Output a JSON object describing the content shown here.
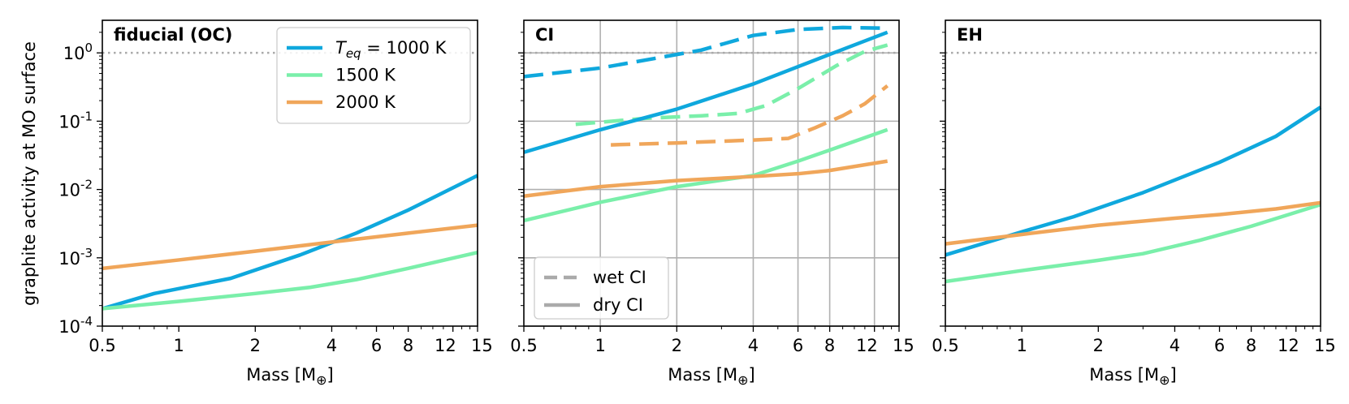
{
  "figure": {
    "ylabel": "graphite activity at MO surface"
  },
  "chart_data": [
    {
      "type": "line",
      "title": "fiducial (OC)",
      "xlabel": "Mass [M⊕]",
      "xscale": "log",
      "yscale": "log",
      "xlim": [
        0.5,
        15
      ],
      "ylim": [
        0.0001,
        3
      ],
      "xticks": [
        "0.5",
        "1",
        "2",
        "4",
        "6",
        "8",
        "12",
        "15"
      ],
      "yticks": [
        "10^-4",
        "10^-3",
        "10^-2",
        "10^-1",
        "10^0"
      ],
      "grid": false,
      "reference_line": {
        "y": 1,
        "style": "dotted",
        "color": "#aaaaaa"
      },
      "legend": {
        "placement": "top-right",
        "entries": [
          {
            "label_sym": "T",
            "label_sub": "eq",
            "label_rest": " = 1000 K",
            "color": "#0fa8dd"
          },
          {
            "label": "1500 K",
            "color": "#7aefaa"
          },
          {
            "label": "2000 K",
            "color": "#f0a65a"
          }
        ]
      },
      "series": [
        {
          "name": "1000 K",
          "color": "#0fa8dd",
          "style": "solid",
          "points": [
            [
              0.5,
              0.00018
            ],
            [
              0.8,
              0.0003
            ],
            [
              1.6,
              0.0005
            ],
            [
              3,
              0.0011
            ],
            [
              5,
              0.0023
            ],
            [
              8,
              0.005
            ],
            [
              15,
              0.016
            ]
          ]
        },
        {
          "name": "1500 K",
          "color": "#7aefaa",
          "style": "solid",
          "points": [
            [
              0.5,
              0.00018
            ],
            [
              1,
              0.00023
            ],
            [
              2,
              0.0003
            ],
            [
              3.3,
              0.00037
            ],
            [
              5,
              0.00048
            ],
            [
              8,
              0.0007
            ],
            [
              15,
              0.0012
            ]
          ]
        },
        {
          "name": "2000 K",
          "color": "#f0a65a",
          "style": "solid",
          "points": [
            [
              0.5,
              0.0007
            ],
            [
              1,
              0.00093
            ],
            [
              2,
              0.00125
            ],
            [
              4,
              0.0017
            ],
            [
              8,
              0.0023
            ],
            [
              15,
              0.003
            ]
          ]
        }
      ]
    },
    {
      "type": "line",
      "title": "CI",
      "xlabel": "Mass [M⊕]",
      "xscale": "log",
      "yscale": "log",
      "xlim": [
        0.5,
        15
      ],
      "ylim": [
        0.0001,
        3
      ],
      "xticks": [
        "0.5",
        "1",
        "2",
        "4",
        "6",
        "8",
        "12",
        "15"
      ],
      "grid": true,
      "reference_line": {
        "y": 1,
        "style": "dotted",
        "color": "#aaaaaa"
      },
      "legend": {
        "placement": "bottom-left",
        "entries": [
          {
            "label": "wet CI",
            "style": "dashed",
            "color": "#aaaaaa"
          },
          {
            "label": "dry CI",
            "style": "solid",
            "color": "#aaaaaa"
          }
        ]
      },
      "series": [
        {
          "name": "wet CI 1000 K",
          "color": "#0fa8dd",
          "style": "dashed",
          "points": [
            [
              0.5,
              0.45
            ],
            [
              1,
              0.6
            ],
            [
              1.7,
              0.85
            ],
            [
              2.5,
              1.1
            ],
            [
              4,
              1.8
            ],
            [
              6,
              2.2
            ],
            [
              9,
              2.35
            ],
            [
              13.5,
              2.3
            ]
          ]
        },
        {
          "name": "wet CI 1500 K",
          "color": "#7aefaa",
          "style": "dashed",
          "points": [
            [
              0.8,
              0.09
            ],
            [
              1.5,
              0.11
            ],
            [
              2.5,
              0.12
            ],
            [
              3.5,
              0.13
            ],
            [
              4.5,
              0.17
            ],
            [
              6,
              0.3
            ],
            [
              8.5,
              0.65
            ],
            [
              11,
              1.05
            ],
            [
              13.5,
              1.3
            ]
          ]
        },
        {
          "name": "wet CI 2000 K",
          "color": "#f0a65a",
          "style": "dashed",
          "points": [
            [
              1.1,
              0.045
            ],
            [
              2,
              0.048
            ],
            [
              4,
              0.053
            ],
            [
              5.5,
              0.056
            ],
            [
              7,
              0.08
            ],
            [
              9,
              0.12
            ],
            [
              11,
              0.18
            ],
            [
              13.5,
              0.33
            ]
          ]
        },
        {
          "name": "dry CI 1000 K",
          "color": "#0fa8dd",
          "style": "solid",
          "points": [
            [
              0.5,
              0.035
            ],
            [
              1,
              0.075
            ],
            [
              2,
              0.15
            ],
            [
              4,
              0.35
            ],
            [
              8,
              0.95
            ],
            [
              13.5,
              2.0
            ]
          ]
        },
        {
          "name": "dry CI 1500 K",
          "color": "#7aefaa",
          "style": "solid",
          "points": [
            [
              0.5,
              0.0035
            ],
            [
              1,
              0.0065
            ],
            [
              2,
              0.011
            ],
            [
              4,
              0.016
            ],
            [
              6,
              0.026
            ],
            [
              9,
              0.044
            ],
            [
              13.5,
              0.075
            ]
          ]
        },
        {
          "name": "dry CI 2000 K",
          "color": "#f0a65a",
          "style": "solid",
          "points": [
            [
              0.5,
              0.008
            ],
            [
              1,
              0.011
            ],
            [
              2,
              0.0135
            ],
            [
              4,
              0.0155
            ],
            [
              6,
              0.017
            ],
            [
              8,
              0.019
            ],
            [
              13.5,
              0.026
            ]
          ]
        }
      ]
    },
    {
      "type": "line",
      "title": "EH",
      "xlabel": "Mass [M⊕]",
      "xscale": "log",
      "yscale": "log",
      "xlim": [
        0.5,
        15
      ],
      "ylim": [
        0.0001,
        3
      ],
      "xticks": [
        "0.5",
        "1",
        "2",
        "4",
        "6",
        "8",
        "12",
        "15"
      ],
      "grid": false,
      "reference_line": {
        "y": 1,
        "style": "dotted",
        "color": "#aaaaaa"
      },
      "series": [
        {
          "name": "1000 K",
          "color": "#0fa8dd",
          "style": "solid",
          "points": [
            [
              0.5,
              0.0011
            ],
            [
              1,
              0.0024
            ],
            [
              1.6,
              0.004
            ],
            [
              3,
              0.009
            ],
            [
              6,
              0.025
            ],
            [
              10,
              0.06
            ],
            [
              15,
              0.16
            ]
          ]
        },
        {
          "name": "1500 K",
          "color": "#7aefaa",
          "style": "solid",
          "points": [
            [
              0.5,
              0.00045
            ],
            [
              1,
              0.00065
            ],
            [
              2,
              0.00092
            ],
            [
              3,
              0.00115
            ],
            [
              5,
              0.0018
            ],
            [
              8,
              0.0029
            ],
            [
              15,
              0.006
            ]
          ]
        },
        {
          "name": "2000 K",
          "color": "#f0a65a",
          "style": "solid",
          "points": [
            [
              0.5,
              0.0016
            ],
            [
              1,
              0.0022
            ],
            [
              2,
              0.003
            ],
            [
              4,
              0.0038
            ],
            [
              6,
              0.0043
            ],
            [
              10,
              0.0052
            ],
            [
              15,
              0.0064
            ]
          ]
        }
      ]
    }
  ]
}
